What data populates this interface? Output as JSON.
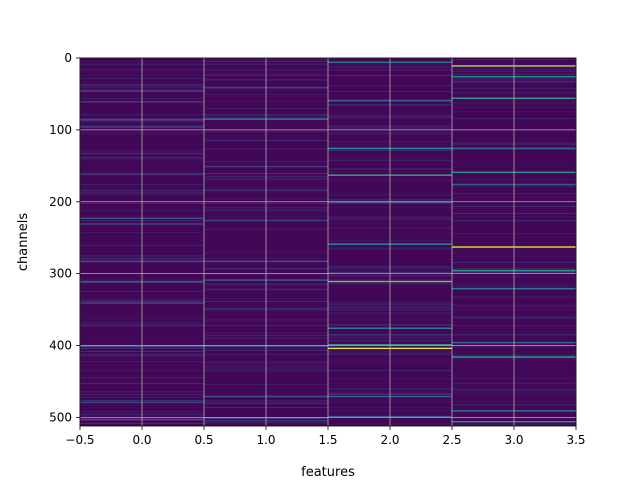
{
  "chart_data": {
    "type": "heatmap",
    "colormap": "viridis",
    "xlabel": "features",
    "ylabel": "channels",
    "xlim": [
      -0.5,
      3.5
    ],
    "ylim": [
      512,
      0
    ],
    "x_ticks": [
      {
        "value": -0.5,
        "label": "−0.5"
      },
      {
        "value": 0.0,
        "label": "0.0"
      },
      {
        "value": 0.5,
        "label": "0.5"
      },
      {
        "value": 1.0,
        "label": "1.0"
      },
      {
        "value": 1.5,
        "label": "1.5"
      },
      {
        "value": 2.0,
        "label": "2.0"
      },
      {
        "value": 2.5,
        "label": "2.5"
      },
      {
        "value": 3.0,
        "label": "3.0"
      },
      {
        "value": 3.5,
        "label": "3.5"
      }
    ],
    "y_ticks": [
      {
        "value": 0,
        "label": "0"
      },
      {
        "value": 100,
        "label": "100"
      },
      {
        "value": 200,
        "label": "200"
      },
      {
        "value": 300,
        "label": "300"
      },
      {
        "value": 400,
        "label": "400"
      },
      {
        "value": 500,
        "label": "500"
      }
    ],
    "grid": true,
    "n_rows": 512,
    "background_level": 0.02,
    "columns": [
      {
        "feature": 0,
        "highlights": [
          {
            "row": 45,
            "level": 0.22
          },
          {
            "row": 60,
            "level": 0.18
          },
          {
            "row": 85,
            "level": 0.25
          },
          {
            "row": 95,
            "level": 0.2
          },
          {
            "row": 160,
            "level": 0.15
          },
          {
            "row": 222,
            "level": 0.25
          },
          {
            "row": 230,
            "level": 0.2
          },
          {
            "row": 282,
            "level": 0.28
          },
          {
            "row": 310,
            "level": 0.3
          },
          {
            "row": 340,
            "level": 0.22
          },
          {
            "row": 400,
            "level": 0.25
          },
          {
            "row": 478,
            "level": 0.2
          },
          {
            "row": 502,
            "level": 0.25
          }
        ]
      },
      {
        "feature": 1,
        "highlights": [
          {
            "row": 40,
            "level": 0.2
          },
          {
            "row": 84,
            "level": 0.45
          },
          {
            "row": 150,
            "level": 0.18
          },
          {
            "row": 225,
            "level": 0.2
          },
          {
            "row": 282,
            "level": 0.25
          },
          {
            "row": 308,
            "level": 0.3
          },
          {
            "row": 400,
            "level": 0.25
          },
          {
            "row": 470,
            "level": 0.25
          },
          {
            "row": 500,
            "level": 0.2
          }
        ]
      },
      {
        "feature": 2,
        "highlights": [
          {
            "row": 5,
            "level": 0.4
          },
          {
            "row": 58,
            "level": 0.3
          },
          {
            "row": 125,
            "level": 0.45
          },
          {
            "row": 162,
            "level": 0.6
          },
          {
            "row": 200,
            "level": 0.25
          },
          {
            "row": 258,
            "level": 0.5
          },
          {
            "row": 310,
            "level": 0.75
          },
          {
            "row": 375,
            "level": 0.45
          },
          {
            "row": 398,
            "level": 0.55
          },
          {
            "row": 403,
            "level": 0.95
          },
          {
            "row": 470,
            "level": 0.3
          },
          {
            "row": 498,
            "level": 0.3
          }
        ]
      },
      {
        "feature": 3,
        "highlights": [
          {
            "row": 10,
            "level": 0.85
          },
          {
            "row": 25,
            "level": 0.5
          },
          {
            "row": 55,
            "level": 0.55
          },
          {
            "row": 125,
            "level": 0.35
          },
          {
            "row": 158,
            "level": 0.5
          },
          {
            "row": 175,
            "level": 0.3
          },
          {
            "row": 262,
            "level": 0.95
          },
          {
            "row": 295,
            "level": 0.55
          },
          {
            "row": 320,
            "level": 0.4
          },
          {
            "row": 395,
            "level": 0.35
          },
          {
            "row": 415,
            "level": 0.55
          },
          {
            "row": 490,
            "level": 0.4
          },
          {
            "row": 505,
            "level": 0.5
          }
        ]
      }
    ]
  }
}
